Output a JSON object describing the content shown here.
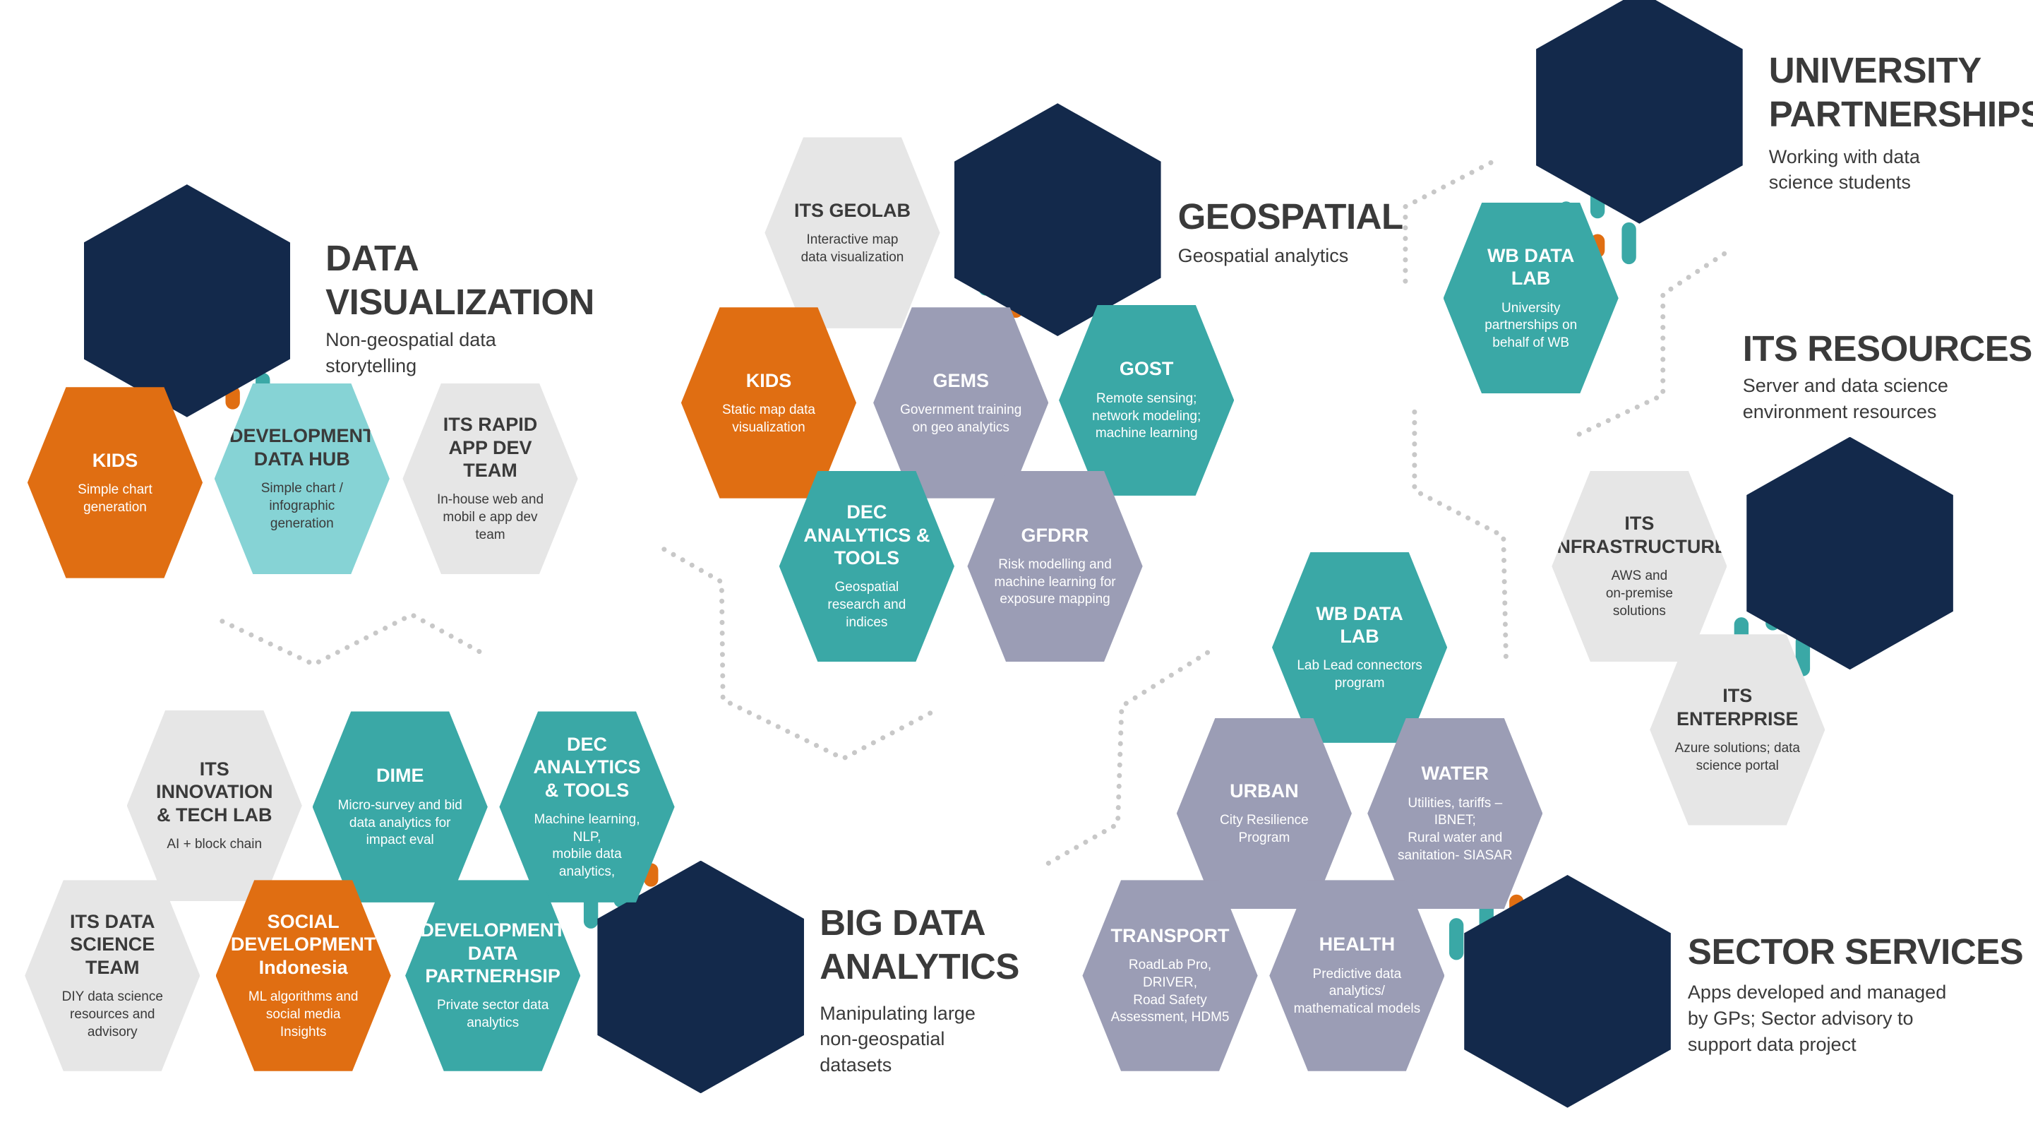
{
  "colors": {
    "navy": "#13294b",
    "orange": "#e06e12",
    "teal": "#3aa8a6",
    "light_teal": "#86d3d5",
    "slate": "#9b9db5",
    "light_gray": "#e6e6e6",
    "dot_gray": "#c8c8c8",
    "text_dark": "#3a3a3a"
  },
  "categories": [
    {
      "key": "data_viz",
      "title": "DATA\nVISUALIZATION",
      "subtitle": "Non-geospatial data\nstorytelling"
    },
    {
      "key": "geospatial",
      "title": "GEOSPATIAL",
      "subtitle": "Geospatial analytics"
    },
    {
      "key": "university",
      "title": "UNIVERSITY\nPARTNERSHIPS",
      "subtitle": "Working with data\nscience students"
    },
    {
      "key": "its_resources",
      "title": "ITS RESOURCES",
      "subtitle": "Server and data science\nenvironment resources"
    },
    {
      "key": "big_data",
      "title": "BIG DATA\nANALYTICS",
      "subtitle": "Manipulating large\nnon-geospatial\ndatasets"
    },
    {
      "key": "sector",
      "title": "SECTOR SERVICES",
      "subtitle": "Apps developed and managed\nby GPs; Sector advisory to\nsupport data project"
    }
  ],
  "units": [
    {
      "key": "dv_kids",
      "group": "data_viz",
      "title": "KIDS",
      "subtitle": "Simple chart\ngeneration",
      "color": "orange"
    },
    {
      "key": "dv_ddh",
      "group": "data_viz",
      "title": "DEVELOPMENT\nDATA HUB",
      "subtitle": "Simple chart /\ninfographic\ngeneration",
      "color": "light_teal"
    },
    {
      "key": "dv_rapid",
      "group": "data_viz",
      "title": "ITS RAPID\nAPP DEV TEAM",
      "subtitle": "In-house web and\nmobil e app dev\nteam",
      "color": "light_gray"
    },
    {
      "key": "gs_geolab",
      "group": "geospatial",
      "title": "ITS GEOLAB",
      "subtitle": "Interactive map\ndata visualization",
      "color": "light_gray"
    },
    {
      "key": "gs_kids",
      "group": "geospatial",
      "title": "KIDS",
      "subtitle": "Static map data\nvisualization",
      "color": "orange"
    },
    {
      "key": "gs_gems",
      "group": "geospatial",
      "title": "GEMS",
      "subtitle": "Government training\non geo analytics",
      "color": "slate"
    },
    {
      "key": "gs_gost",
      "group": "geospatial",
      "title": "GOST",
      "subtitle": "Remote sensing;\nnetwork modeling;\nmachine learning",
      "color": "teal"
    },
    {
      "key": "gs_dec",
      "group": "geospatial",
      "title": "DEC\nANALYTICS &\nTOOLS",
      "subtitle": "Geospatial\nresearch and\nindices",
      "color": "teal"
    },
    {
      "key": "gs_gfdrr",
      "group": "geospatial",
      "title": "GFDRR",
      "subtitle": "Risk modelling and\nmachine learning for\nexposure mapping",
      "color": "slate"
    },
    {
      "key": "up_wbdl",
      "group": "university",
      "title": "WB DATA LAB",
      "subtitle": "University\npartnerships on\nbehalf of WB",
      "color": "teal"
    },
    {
      "key": "ir_infra",
      "group": "its_resources",
      "title": "ITS\nINFRASTRUCTURE",
      "subtitle": "AWS and\non-premise\nsolutions",
      "color": "light_gray"
    },
    {
      "key": "ir_ent",
      "group": "its_resources",
      "title": "ITS\nENTERPRISE",
      "subtitle": "Azure solutions; data\nscience portal",
      "color": "light_gray"
    },
    {
      "key": "bd_innov",
      "group": "big_data",
      "title": "ITS\nINNOVATION\n& TECH LAB",
      "subtitle": "AI + block chain",
      "color": "light_gray"
    },
    {
      "key": "bd_dime",
      "group": "big_data",
      "title": "DIME",
      "subtitle": "Micro-survey and bid\ndata analytics for\nimpact eval",
      "color": "teal"
    },
    {
      "key": "bd_dec",
      "group": "big_data",
      "title": "DEC\nANALYTICS\n& TOOLS",
      "subtitle": "Machine learning, NLP,\nmobile data analytics,",
      "color": "teal"
    },
    {
      "key": "bd_dst",
      "group": "big_data",
      "title": "ITS DATA\nSCIENCE TEAM",
      "subtitle": "DIY data science\nresources and\nadvisory",
      "color": "light_gray"
    },
    {
      "key": "bd_social",
      "group": "big_data",
      "title": "SOCIAL\nDEVELOPMENT\nIndonesia",
      "subtitle": "ML algorithms and\nsocial media\nInsights",
      "color": "orange"
    },
    {
      "key": "bd_ddp",
      "group": "big_data",
      "title": "DEVELOPMENT\nDATA\nPARTNERHSIP",
      "subtitle": "Private sector data\nanalytics",
      "color": "teal"
    },
    {
      "key": "ss_wbdl",
      "group": "sector",
      "title": "WB DATA LAB",
      "subtitle": "Lab Lead connectors\nprogram",
      "color": "teal"
    },
    {
      "key": "ss_urban",
      "group": "sector",
      "title": "URBAN",
      "subtitle": "City Resilience\nProgram",
      "color": "slate"
    },
    {
      "key": "ss_water",
      "group": "sector",
      "title": "WATER",
      "subtitle": "Utilities, tariffs – IBNET;\nRural water and\nsanitation- SIASAR",
      "color": "slate"
    },
    {
      "key": "ss_transport",
      "group": "sector",
      "title": "TRANSPORT",
      "subtitle": "RoadLab Pro, DRIVER,\nRoad Safety\nAssessment, HDM5",
      "color": "slate"
    },
    {
      "key": "ss_health",
      "group": "sector",
      "title": "HEALTH",
      "subtitle": "Predictive data\nanalytics/\nmathematical models",
      "color": "slate"
    }
  ]
}
